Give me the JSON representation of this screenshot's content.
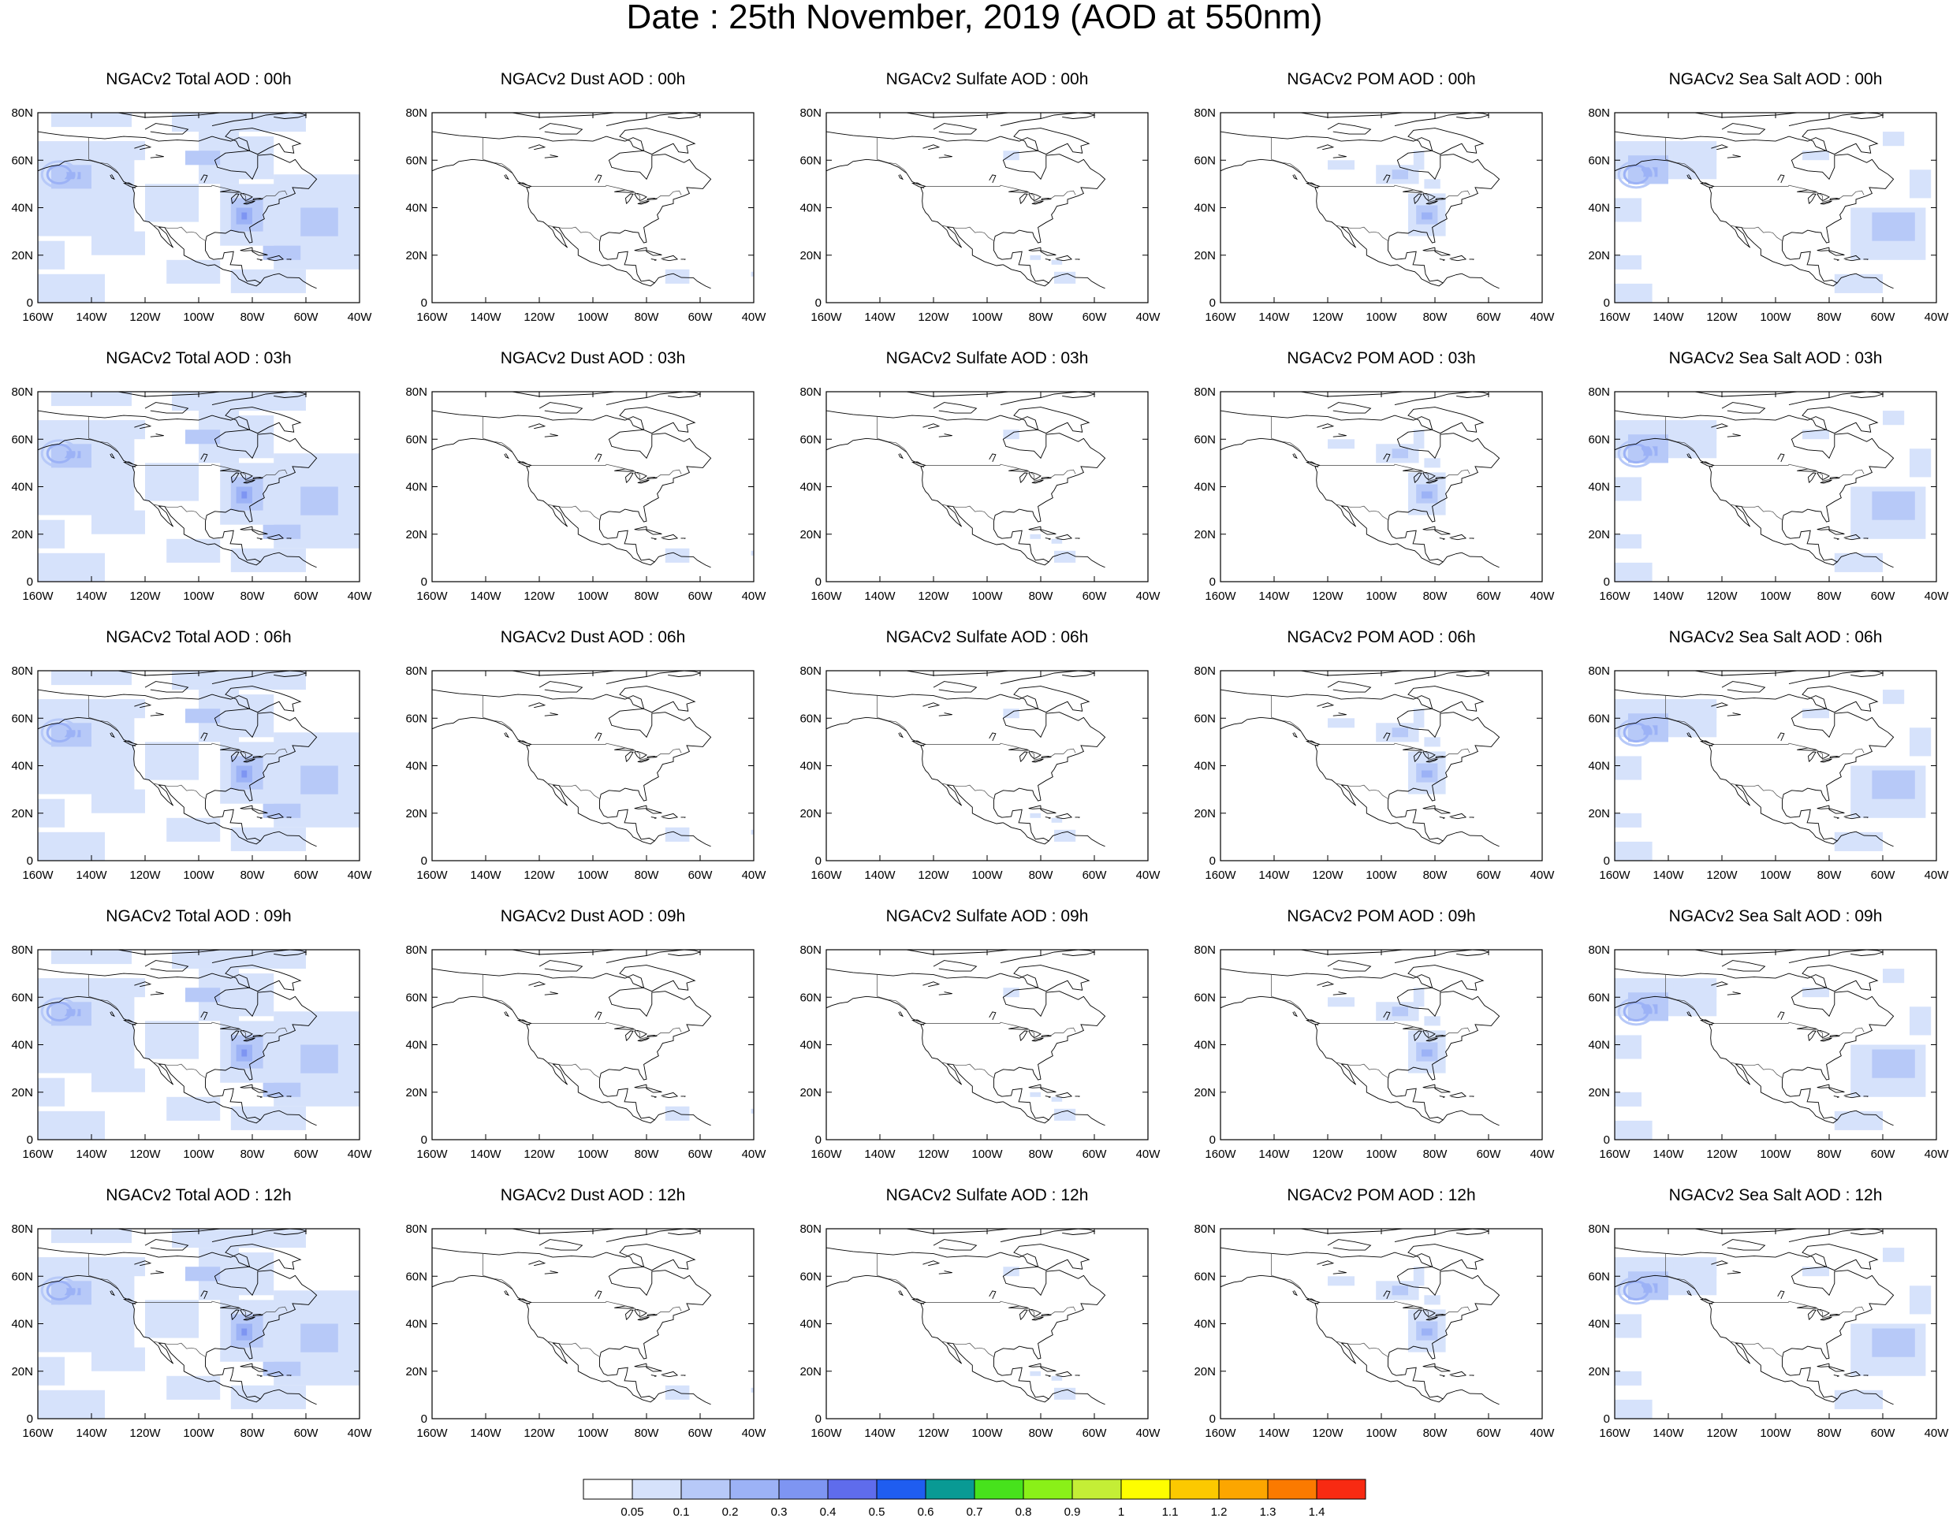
{
  "title": "Date : 25th November, 2019 (AOD at 550nm)",
  "axes": {
    "y_ticks": [
      "80N",
      "60N",
      "40N",
      "20N",
      "0"
    ],
    "x_ticks": [
      "160W",
      "140W",
      "120W",
      "100W",
      "80W",
      "60W",
      "40W"
    ],
    "lon_range": [
      -160,
      -40
    ],
    "lat_range": [
      0,
      80
    ]
  },
  "panels": [
    [
      "NGACv2 Total AOD : 00h",
      "NGACv2 Dust AOD : 00h",
      "NGACv2 Sulfate AOD : 00h",
      "NGACv2 POM AOD : 00h",
      "NGACv2 Sea Salt AOD : 00h"
    ],
    [
      "NGACv2 Total AOD : 03h",
      "NGACv2 Dust AOD : 03h",
      "NGACv2 Sulfate AOD : 03h",
      "NGACv2 POM AOD : 03h",
      "NGACv2 Sea Salt AOD : 03h"
    ],
    [
      "NGACv2 Total AOD : 06h",
      "NGACv2 Dust AOD : 06h",
      "NGACv2 Sulfate AOD : 06h",
      "NGACv2 POM AOD : 06h",
      "NGACv2 Sea Salt AOD : 06h"
    ],
    [
      "NGACv2 Total AOD : 09h",
      "NGACv2 Dust AOD : 09h",
      "NGACv2 Sulfate AOD : 09h",
      "NGACv2 POM AOD : 09h",
      "NGACv2 Sea Salt  AOD : 09h"
    ],
    [
      "NGACv2 Total AOD  : 12h",
      "NGACv2 Dust AOD : 12h",
      "NGACv2 Sulfate AOD : 12h",
      "NGACv2 POM  AOD : 12h",
      "NGACv2 Sea Salt  AOD : 12h"
    ]
  ],
  "panel_types": [
    "total",
    "dust",
    "sulfate",
    "pom",
    "seasalt"
  ],
  "colorbar": {
    "labels": [
      "0.05",
      "0.1",
      "0.2",
      "0.3",
      "0.4",
      "0.5",
      "0.6",
      "0.7",
      "0.8",
      "0.9",
      "1",
      "1.1",
      "1.2",
      "1.3",
      "1.4"
    ],
    "colors": [
      "#ffffff",
      "#d6e2fb",
      "#b7c9f8",
      "#9cb2f6",
      "#7e95f2",
      "#5f6cec",
      "#1f5df0",
      "#099a94",
      "#47e21c",
      "#8af018",
      "#c4ee36",
      "#fefe00",
      "#fcc900",
      "#fca600",
      "#fb7a00",
      "#f82a12"
    ]
  }
}
